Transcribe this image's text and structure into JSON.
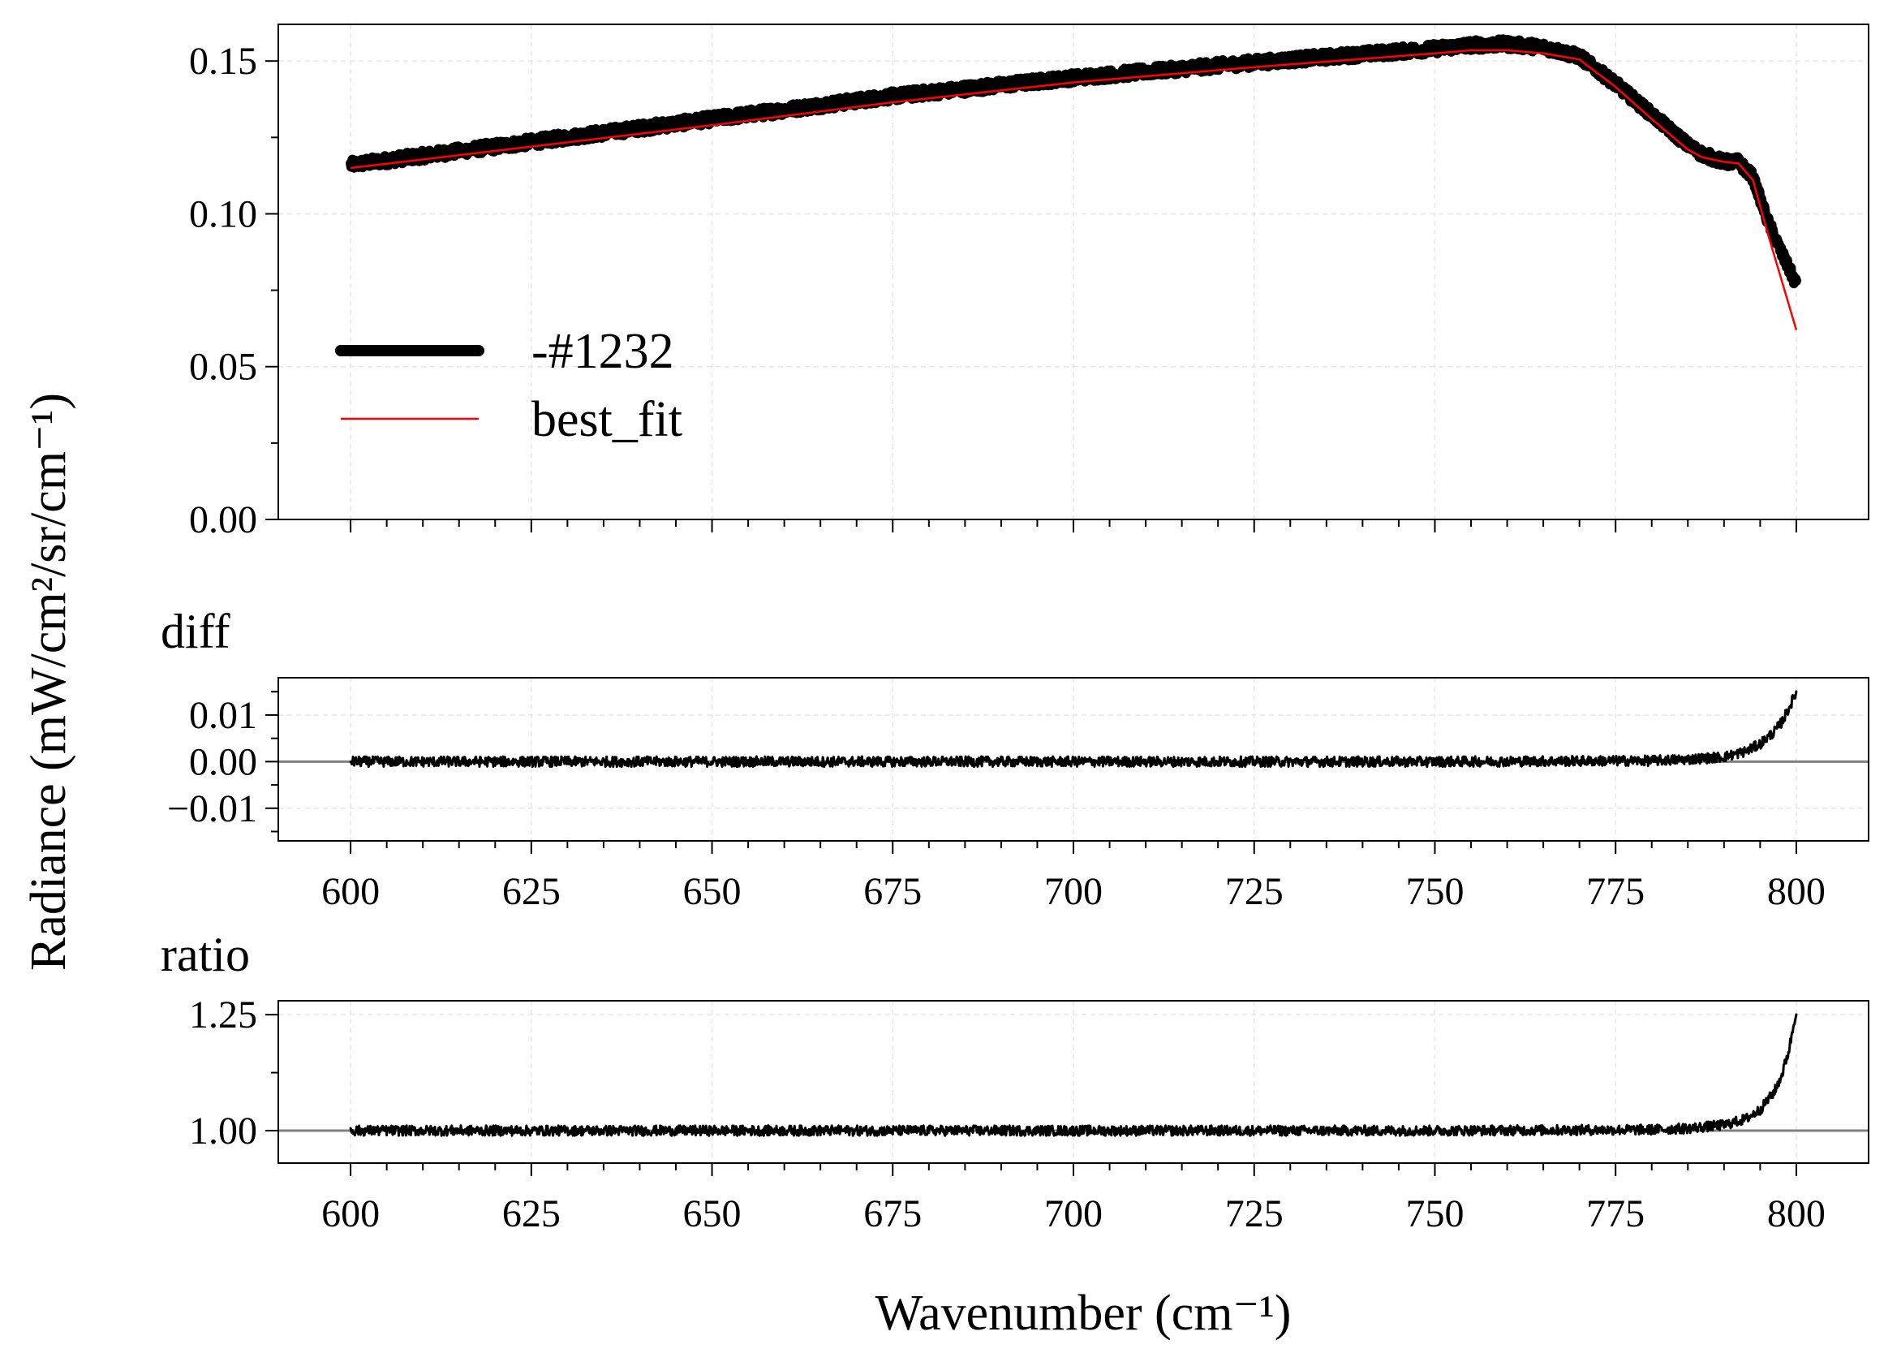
{
  "chart_data": {
    "type": "line",
    "ylabel": "Radiance (mW/cm²/sr/cm⁻¹)",
    "xlabel": "Wavenumber (cm⁻¹)",
    "xlim": [
      590,
      810
    ],
    "xticks": [
      "600",
      "625",
      "650",
      "675",
      "700",
      "725",
      "750",
      "775",
      "800"
    ],
    "grid": true,
    "panels": [
      {
        "id": "main",
        "title": "",
        "ylim": [
          0.0,
          0.162
        ],
        "yticks": [
          "0.00",
          "0.05",
          "0.10",
          "0.15"
        ],
        "show_xtick_labels": false,
        "legend_position": "center-left",
        "series": [
          {
            "name": "-#1232",
            "color": "#000000",
            "style": "thick-noisy",
            "noise": 0.0017,
            "x": [
              600,
              625,
              650,
              675,
              700,
              725,
              750,
              755,
              760,
              765,
              770,
              775,
              780,
              785,
              787,
              790,
              792,
              794,
              796,
              798,
              800
            ],
            "y": [
              0.116,
              0.1235,
              0.131,
              0.1385,
              0.1445,
              0.1495,
              0.154,
              0.1552,
              0.1555,
              0.1545,
              0.1515,
              0.1425,
              0.1325,
              0.1225,
              0.1195,
              0.117,
              0.117,
              0.112,
              0.098,
              0.087,
              0.077
            ]
          },
          {
            "name": "best_fit",
            "color": "#ff0000",
            "style": "thin",
            "x": [
              600,
              625,
              650,
              675,
              700,
              725,
              750,
              755,
              760,
              765,
              770,
              775,
              780,
              785,
              787,
              790,
              792,
              794,
              796,
              798,
              800
            ],
            "y": [
              0.115,
              0.122,
              0.129,
              0.1365,
              0.143,
              0.148,
              0.1525,
              0.1535,
              0.1535,
              0.1525,
              0.1505,
              0.1415,
              0.131,
              0.121,
              0.1185,
              0.117,
              0.1165,
              0.111,
              0.094,
              0.078,
              0.062
            ]
          }
        ]
      },
      {
        "id": "diff",
        "title": "diff",
        "ylim": [
          -0.017,
          0.018
        ],
        "yticks": [
          "−0.01",
          "0.00",
          "0.01"
        ],
        "ytick_values": [
          -0.01,
          0.0,
          0.01
        ],
        "hline": 0.0,
        "show_xtick_labels": true,
        "series": [
          {
            "name": "diff",
            "color": "#000000",
            "style": "noisy",
            "noise": 0.0011,
            "x": [
              600,
              650,
              700,
              750,
              780,
              785,
              790,
              793,
              795,
              797,
              798,
              799,
              800
            ],
            "y": [
              0.0,
              0.0,
              0.0,
              0.0,
              0.0002,
              0.0005,
              0.001,
              0.0022,
              0.0038,
              0.0065,
              0.0085,
              0.0115,
              0.015
            ]
          }
        ]
      },
      {
        "id": "ratio",
        "title": "ratio",
        "ylim": [
          0.93,
          1.28
        ],
        "yticks": [
          "1.00",
          "1.25"
        ],
        "ytick_values": [
          1.0,
          1.25
        ],
        "hline": 1.0,
        "show_xtick_labels": true,
        "series": [
          {
            "name": "ratio",
            "color": "#000000",
            "style": "noisy",
            "noise": 0.011,
            "x": [
              600,
              650,
              700,
              750,
              780,
              785,
              790,
              793,
              795,
              797,
              798,
              799,
              800
            ],
            "y": [
              1.0,
              1.0,
              1.0,
              1.0,
              1.002,
              1.005,
              1.012,
              1.025,
              1.045,
              1.085,
              1.12,
              1.175,
              1.26
            ]
          }
        ]
      }
    ]
  }
}
